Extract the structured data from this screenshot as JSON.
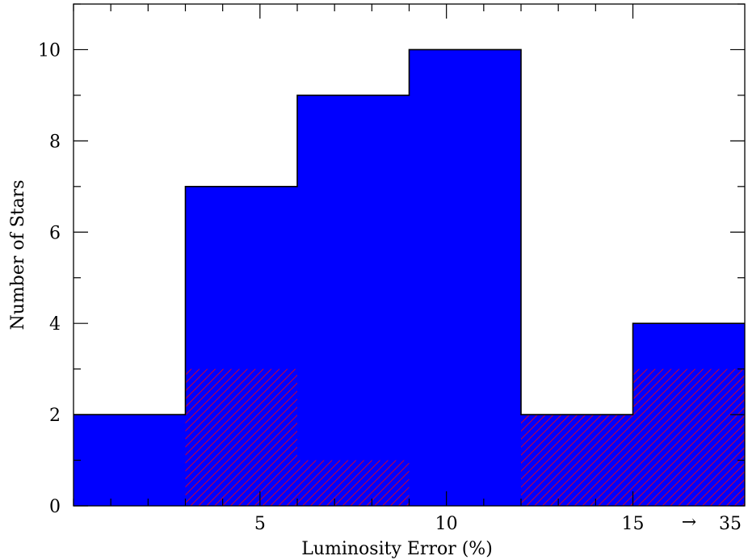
{
  "chart_data": {
    "type": "bar",
    "title": "",
    "xlabel": "Luminosity Error (%)",
    "ylabel": "Number of Stars",
    "ylim": [
      0,
      11
    ],
    "y_ticks": [
      "0",
      "2",
      "4",
      "6",
      "8",
      "10"
    ],
    "x_ticks": [
      {
        "label": "5",
        "at": 5
      },
      {
        "label": "10",
        "at": 10
      },
      {
        "label": "15",
        "at": 15
      }
    ],
    "x_break_label": "→",
    "x_end_label": "35",
    "bins": [
      {
        "range": [
          0,
          3
        ],
        "total": 2,
        "hatched": 0
      },
      {
        "range": [
          3,
          6
        ],
        "total": 7,
        "hatched": 3
      },
      {
        "range": [
          6,
          9
        ],
        "total": 9,
        "hatched": 1
      },
      {
        "range": [
          9,
          12
        ],
        "total": 10,
        "hatched": 0
      },
      {
        "range": [
          12,
          15
        ],
        "total": 2,
        "hatched": 2
      },
      {
        "range": [
          15,
          35
        ],
        "total": 4,
        "hatched": 3
      }
    ],
    "series": [
      {
        "values": [
          2,
          7,
          9,
          10,
          2,
          4
        ],
        "color": "#0000ff"
      },
      {
        "values": [
          0,
          3,
          1,
          0,
          2,
          3
        ],
        "color": "#ff0000",
        "fill": "hatched"
      }
    ],
    "grid": false,
    "legend": "none"
  }
}
